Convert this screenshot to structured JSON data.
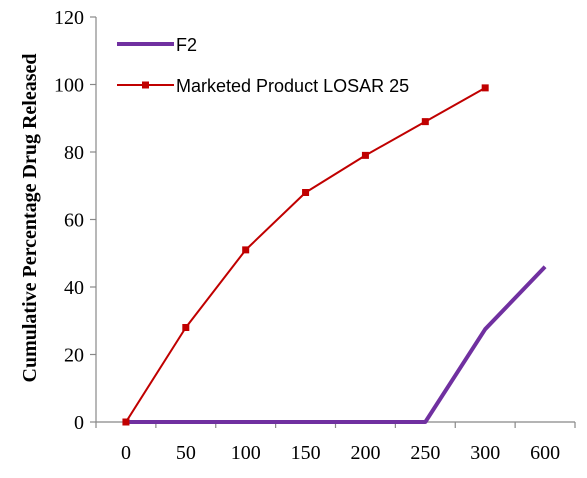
{
  "chart_data": {
    "type": "line",
    "categories": [
      "0",
      "50",
      "100",
      "150",
      "200",
      "250",
      "300",
      "600"
    ],
    "ylabel": "Cumulative Percentage Drug Released",
    "xlabel": "",
    "ylim": [
      0,
      120
    ],
    "yticks": [
      0,
      20,
      40,
      60,
      80,
      100,
      120
    ],
    "legend_position": "top-left",
    "series": [
      {
        "name": "F2",
        "color": "#7030a0",
        "marker": "none",
        "values": [
          0,
          0,
          0,
          0,
          0,
          0,
          27.5,
          46
        ]
      },
      {
        "name": "Marketed Product LOSAR 25",
        "color": "#c00000",
        "marker": "square",
        "values": [
          0,
          28,
          51,
          68,
          79,
          89,
          99,
          null
        ]
      }
    ]
  }
}
